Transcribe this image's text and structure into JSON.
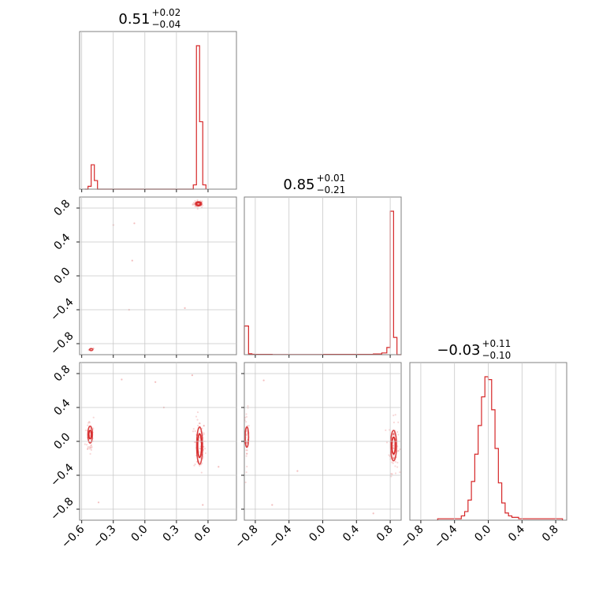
{
  "chart_data": {
    "type": "corner",
    "color": "#d62728",
    "grid": true,
    "parameters": [
      {
        "summary": {
          "value": "0.51",
          "upper": "+0.02",
          "lower": "−0.04"
        },
        "range": [
          -0.62,
          0.87
        ],
        "ticks": [
          -0.6,
          -0.3,
          0.0,
          0.3,
          0.6
        ],
        "tick_labels": [
          "−0.6",
          "−0.3",
          "0.0",
          "0.3",
          "0.6"
        ],
        "histogram": {
          "edges": [
            -0.57,
            -0.54,
            -0.51,
            -0.48,
            -0.45,
            0.46,
            0.49,
            0.52,
            0.55,
            0.58
          ],
          "counts": [
            0,
            2,
            17,
            6,
            0,
            3,
            100,
            47,
            3,
            0
          ]
        }
      },
      {
        "summary": {
          "value": "0.85",
          "upper": "+0.01",
          "lower": "−0.21"
        },
        "range": [
          -0.93,
          0.93
        ],
        "ticks": [
          -0.8,
          -0.4,
          0.0,
          0.4,
          0.8
        ],
        "tick_labels": [
          "−0.8",
          "−0.4",
          "0.0",
          "0.4",
          "0.8"
        ],
        "histogram": {
          "edges": [
            -0.93,
            -0.88,
            -0.84,
            -0.8,
            -0.6,
            0.0,
            0.6,
            0.7,
            0.76,
            0.8,
            0.84,
            0.88,
            0.93
          ],
          "counts": [
            20,
            0.6,
            0.3,
            0.2,
            0.1,
            0.2,
            0.5,
            1.2,
            5,
            100,
            12,
            0
          ]
        }
      },
      {
        "summary": {
          "value": "−0.03",
          "upper": "+0.11",
          "lower": "−0.10"
        },
        "range": [
          -0.93,
          0.93
        ],
        "ticks": [
          -0.8,
          -0.4,
          0.0,
          0.4,
          0.8
        ],
        "tick_labels": [
          "−0.8",
          "−0.4",
          "0.0",
          "0.4",
          "0.8"
        ],
        "histogram": {
          "edges": [
            -0.6,
            -0.56,
            -0.52,
            -0.48,
            -0.44,
            -0.4,
            -0.36,
            -0.32,
            -0.28,
            -0.24,
            -0.2,
            -0.16,
            -0.12,
            -0.08,
            -0.04,
            0.0,
            0.04,
            0.08,
            0.12,
            0.16,
            0.2,
            0.24,
            0.28,
            0.32,
            0.36,
            0.4,
            0.44,
            0.48,
            0.52,
            0.56,
            0.6,
            0.64,
            0.68,
            0.72,
            0.76,
            0.8,
            0.84,
            0.88
          ],
          "counts": [
            1,
            1,
            1,
            1,
            1,
            1,
            1,
            3,
            6,
            14,
            27,
            46,
            66,
            86,
            100,
            98,
            77,
            50,
            26,
            12,
            5,
            3,
            2,
            2,
            1,
            1,
            1,
            1,
            1,
            1,
            1,
            1,
            1,
            1,
            1,
            1,
            1
          ]
        }
      }
    ],
    "pairs": [
      {
        "x_param": 0,
        "y_param": 1,
        "modes": [
          {
            "center": [
              0.51,
              0.85
            ],
            "contour_radii": [
              [
                0.03,
                0.025
              ],
              [
                0.018,
                0.015
              ]
            ],
            "scatter_spread": [
              0.06,
              0.05
            ],
            "n_points": 40
          },
          {
            "center": [
              -0.51,
              -0.87
            ],
            "contour_radii": [
              [
                0.016,
                0.012
              ]
            ],
            "scatter_spread": [
              0.03,
              0.02
            ],
            "n_points": 8
          }
        ],
        "outliers": [
          [
            -0.12,
            0.18
          ],
          [
            0.38,
            -0.38
          ],
          [
            -0.1,
            0.62
          ],
          [
            -0.3,
            0.6
          ],
          [
            -0.15,
            -0.4
          ]
        ]
      },
      {
        "x_param": 0,
        "y_param": 2,
        "modes": [
          {
            "center": [
              0.52,
              -0.05
            ],
            "contour_radii": [
              [
                0.028,
                0.22
              ],
              [
                0.018,
                0.14
              ]
            ],
            "scatter_spread": [
              0.06,
              0.35
            ],
            "n_points": 80
          },
          {
            "center": [
              -0.52,
              0.08
            ],
            "contour_radii": [
              [
                0.022,
                0.1
              ],
              [
                0.012,
                0.05
              ]
            ],
            "scatter_spread": [
              0.05,
              0.3
            ],
            "n_points": 40
          }
        ],
        "outliers": [
          [
            0.1,
            0.7
          ],
          [
            0.18,
            0.4
          ],
          [
            -0.22,
            0.73
          ],
          [
            0.45,
            0.78
          ],
          [
            0.7,
            -0.3
          ],
          [
            -0.44,
            -0.72
          ],
          [
            0.55,
            -0.75
          ]
        ]
      },
      {
        "x_param": 1,
        "y_param": 2,
        "modes": [
          {
            "center": [
              0.84,
              -0.05
            ],
            "contour_radii": [
              [
                0.035,
                0.18
              ],
              [
                0.02,
                0.1
              ]
            ],
            "scatter_spread": [
              0.06,
              0.35
            ],
            "n_points": 80
          },
          {
            "center": [
              -0.9,
              0.05
            ],
            "contour_radii": [
              [
                0.02,
                0.12
              ]
            ],
            "scatter_spread": [
              0.03,
              0.35
            ],
            "n_points": 40
          }
        ],
        "outliers": [
          [
            -0.3,
            -0.35
          ],
          [
            -0.6,
            -0.75
          ],
          [
            0.6,
            -0.85
          ],
          [
            -0.7,
            0.72
          ]
        ]
      }
    ]
  }
}
